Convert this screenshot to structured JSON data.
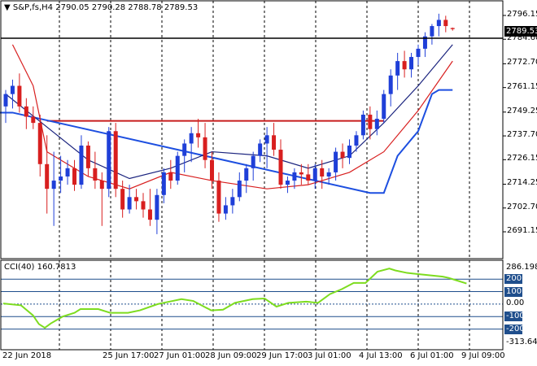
{
  "header": {
    "symbol": "S&P,fs,H4",
    "ohlc": "2790.05 2790.28 2788.78 2789.53",
    "menu_arrow": "triangle-down-icon"
  },
  "price_axis": {
    "ticks": [
      "2796.15",
      "2784.60",
      "2772.70",
      "2761.15",
      "2749.25",
      "2737.70",
      "2726.15",
      "2714.25",
      "2702.70",
      "2691.15"
    ],
    "current_price": "2789.53"
  },
  "time_axis": {
    "labels": [
      "22 Jun 2018",
      "25 Jun 17:00",
      "27 Jun 01:00",
      "28 Jun 09:00",
      "29 Jun 17:00",
      "3 Jul 01:00",
      "4 Jul 13:00",
      "6 Jul 01:00",
      "9 Jul 09:00"
    ]
  },
  "indicator": {
    "name": "CCI(40)",
    "value": "160.7813",
    "ticks": [
      "286.1989",
      "200",
      "100",
      "0.00",
      "-100",
      "-200",
      "-313.642"
    ],
    "badge_ticks": [
      "200",
      "100",
      "-100",
      "-200"
    ]
  },
  "colors": {
    "bull": "#1f3fd8",
    "bear": "#d81f1f",
    "ma_fast": "#1a237e",
    "ma_slow": "#d81f1f",
    "band": "#1d4fe0",
    "resistance": "#c81e1e",
    "cci": "#7ddc1f",
    "cci_level": "#1f4e8c",
    "grid": "#000000"
  },
  "chart_data": {
    "type": "candlestick",
    "ohlc": [
      [
        2752,
        2760,
        2744,
        2758
      ],
      [
        2758,
        2765,
        2751,
        2762
      ],
      [
        2762,
        2768,
        2749,
        2752
      ],
      [
        2752,
        2756,
        2741,
        2747
      ],
      [
        2747,
        2752,
        2741,
        2744
      ],
      [
        2744,
        2748,
        2718,
        2724
      ],
      [
        2724,
        2738,
        2700,
        2712
      ],
      [
        2712,
        2730,
        2694,
        2716
      ],
      [
        2716,
        2728,
        2710,
        2718
      ],
      [
        2718,
        2726,
        2714,
        2722
      ],
      [
        2722,
        2726,
        2711,
        2714
      ],
      [
        2714,
        2738,
        2712,
        2733
      ],
      [
        2733,
        2735,
        2718,
        2722
      ],
      [
        2722,
        2730,
        2712,
        2716
      ],
      [
        2716,
        2720,
        2694,
        2712
      ],
      [
        2712,
        2742,
        2708,
        2740
      ],
      [
        2740,
        2744,
        2708,
        2712
      ],
      [
        2712,
        2716,
        2698,
        2702
      ],
      [
        2702,
        2714,
        2700,
        2708
      ],
      [
        2708,
        2712,
        2702,
        2706
      ],
      [
        2706,
        2710,
        2698,
        2702
      ],
      [
        2702,
        2712,
        2694,
        2697
      ],
      [
        2697,
        2712,
        2690,
        2709
      ],
      [
        2709,
        2722,
        2705,
        2720
      ],
      [
        2720,
        2726,
        2712,
        2716
      ],
      [
        2716,
        2730,
        2714,
        2728
      ],
      [
        2728,
        2736,
        2720,
        2734
      ],
      [
        2734,
        2742,
        2725,
        2739
      ],
      [
        2739,
        2746,
        2732,
        2737
      ],
      [
        2737,
        2744,
        2722,
        2726
      ],
      [
        2726,
        2730,
        2712,
        2716
      ],
      [
        2716,
        2720,
        2696,
        2700
      ],
      [
        2700,
        2708,
        2697,
        2704
      ],
      [
        2704,
        2712,
        2700,
        2708
      ],
      [
        2708,
        2720,
        2706,
        2716
      ],
      [
        2716,
        2724,
        2710,
        2722
      ],
      [
        2722,
        2730,
        2716,
        2728
      ],
      [
        2728,
        2736,
        2725,
        2734
      ],
      [
        2734,
        2742,
        2722,
        2738
      ],
      [
        2738,
        2744,
        2728,
        2731
      ],
      [
        2731,
        2736,
        2712,
        2714
      ],
      [
        2714,
        2718,
        2710,
        2716
      ],
      [
        2716,
        2722,
        2712,
        2720
      ],
      [
        2720,
        2724,
        2714,
        2719
      ],
      [
        2719,
        2724,
        2714,
        2716
      ],
      [
        2716,
        2724,
        2712,
        2722
      ],
      [
        2722,
        2726,
        2712,
        2718
      ],
      [
        2718,
        2722,
        2714,
        2720
      ],
      [
        2720,
        2732,
        2716,
        2730
      ],
      [
        2730,
        2734,
        2722,
        2727
      ],
      [
        2727,
        2736,
        2724,
        2733
      ],
      [
        2733,
        2740,
        2730,
        2738
      ],
      [
        2738,
        2750,
        2736,
        2748
      ],
      [
        2748,
        2752,
        2736,
        2741
      ],
      [
        2741,
        2750,
        2738,
        2746
      ],
      [
        2746,
        2760,
        2744,
        2758
      ],
      [
        2758,
        2770,
        2752,
        2767
      ],
      [
        2767,
        2778,
        2760,
        2774
      ],
      [
        2774,
        2779,
        2766,
        2770
      ],
      [
        2770,
        2778,
        2766,
        2776
      ],
      [
        2776,
        2782,
        2772,
        2780
      ],
      [
        2780,
        2788,
        2776,
        2786
      ],
      [
        2786,
        2792,
        2782,
        2791
      ],
      [
        2791,
        2797,
        2786,
        2794
      ],
      [
        2794,
        2796,
        2788,
        2791
      ],
      [
        2790.05,
        2790.28,
        2788.78,
        2789.53
      ]
    ],
    "ma_fast": [
      [
        0,
        2758
      ],
      [
        6,
        2742
      ],
      [
        12,
        2726
      ],
      [
        18,
        2717
      ],
      [
        24,
        2722
      ],
      [
        30,
        2730
      ],
      [
        38,
        2728
      ],
      [
        44,
        2722
      ],
      [
        50,
        2728
      ],
      [
        55,
        2744
      ],
      [
        60,
        2762
      ],
      [
        65,
        2782
      ]
    ],
    "ma_slow": [
      [
        1,
        2782
      ],
      [
        4,
        2762
      ],
      [
        6,
        2730
      ],
      [
        12,
        2718
      ],
      [
        18,
        2712
      ],
      [
        24,
        2720
      ],
      [
        30,
        2716
      ],
      [
        38,
        2712
      ],
      [
        44,
        2714
      ],
      [
        50,
        2720
      ],
      [
        55,
        2730
      ],
      [
        60,
        2750
      ],
      [
        65,
        2774
      ]
    ],
    "band": [
      [
        -1,
        2749
      ],
      [
        1,
        2749
      ],
      [
        53,
        2710
      ],
      [
        55,
        2710
      ],
      [
        57,
        2728
      ],
      [
        60,
        2740
      ],
      [
        62,
        2758
      ],
      [
        63,
        2760
      ],
      [
        65,
        2760
      ]
    ],
    "resistance": {
      "from": 6,
      "to": 55,
      "price": 2745
    },
    "cci": [
      [
        0,
        5
      ],
      [
        3,
        -10
      ],
      [
        5,
        -90
      ],
      [
        6,
        -160
      ],
      [
        7,
        -190
      ],
      [
        8,
        -155
      ],
      [
        10,
        -100
      ],
      [
        12,
        -70
      ],
      [
        13,
        -40
      ],
      [
        16,
        -40
      ],
      [
        18,
        -70
      ],
      [
        21,
        -70
      ],
      [
        23,
        -50
      ],
      [
        26,
        0
      ],
      [
        28,
        20
      ],
      [
        30,
        40
      ],
      [
        32,
        25
      ],
      [
        35,
        -50
      ],
      [
        37,
        -45
      ],
      [
        39,
        10
      ],
      [
        42,
        40
      ],
      [
        44,
        45
      ],
      [
        46,
        -20
      ],
      [
        48,
        10
      ],
      [
        51,
        20
      ],
      [
        53,
        10
      ],
      [
        55,
        80
      ],
      [
        57,
        120
      ],
      [
        59,
        170
      ],
      [
        61,
        170
      ],
      [
        63,
        260
      ],
      [
        65,
        285
      ],
      [
        66,
        270
      ],
      [
        68,
        250
      ],
      [
        70,
        240
      ],
      [
        72,
        230
      ],
      [
        74,
        220
      ],
      [
        75,
        210
      ],
      [
        76,
        195
      ],
      [
        78,
        165
      ]
    ]
  }
}
